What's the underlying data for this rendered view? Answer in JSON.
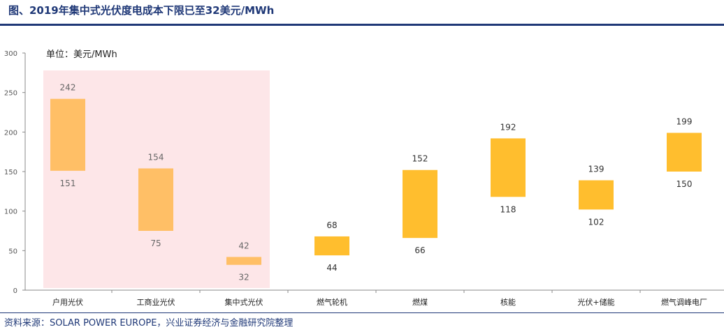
{
  "header": {
    "title": "图、2019年集中式光伏度电成本下限已至32美元/MWh"
  },
  "footer": {
    "source": "资料来源：SOLAR POWER EUROPE，兴业证券经济与金融研究院整理"
  },
  "chart_data": {
    "type": "bar",
    "subtype": "floating-range",
    "unit_label": "单位：美元/MWh",
    "ylim": [
      0,
      300
    ],
    "yticks": [
      0,
      50,
      100,
      150,
      200,
      250,
      300
    ],
    "grid": false,
    "categories": [
      "户用光伏",
      "工商业光伏",
      "集中式光伏",
      "燃气轮机",
      "燃煤",
      "核能",
      "光伏+储能",
      "燃气调峰电厂"
    ],
    "low": [
      151,
      75,
      32,
      44,
      66,
      118,
      102,
      150
    ],
    "high": [
      242,
      154,
      42,
      68,
      152,
      192,
      139,
      199
    ],
    "highlight_categories": [
      "户用光伏",
      "工商业光伏",
      "集中式光伏"
    ],
    "colors": {
      "pv_bar": "#ffbf66",
      "other_bar": "#ffbe2e",
      "highlight_bg": "#fde6e8",
      "axis": "#888888"
    }
  }
}
